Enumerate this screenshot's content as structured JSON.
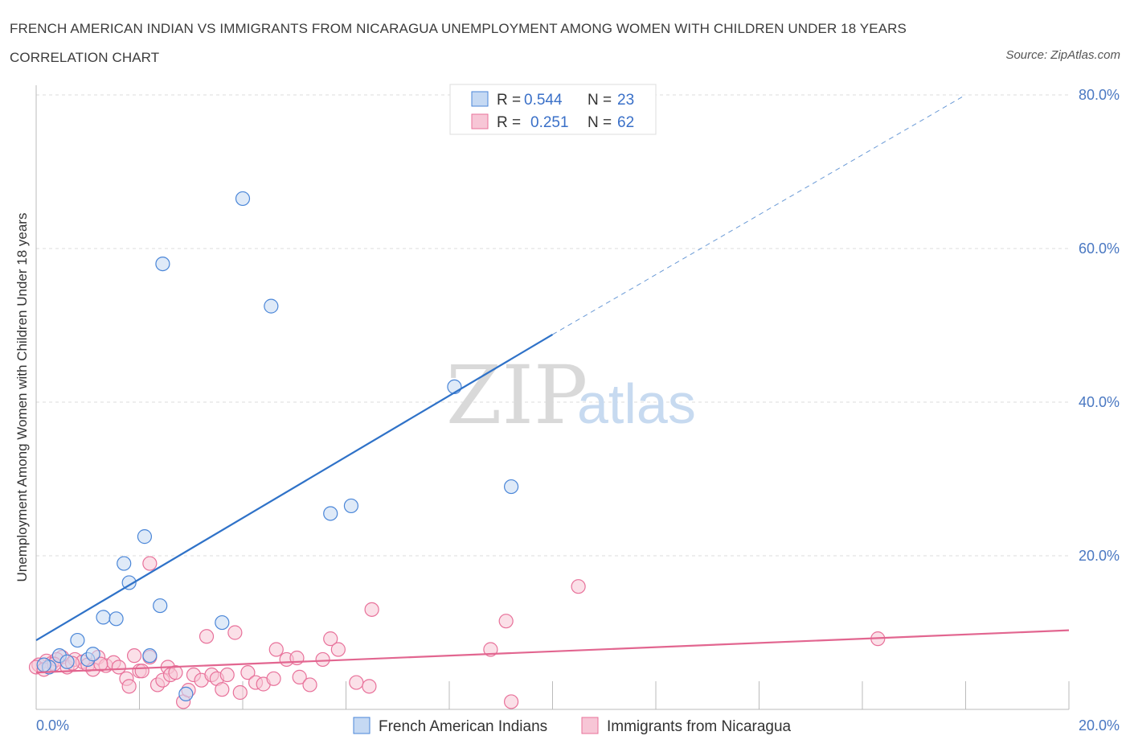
{
  "title": "FRENCH AMERICAN INDIAN VS IMMIGRANTS FROM NICARAGUA UNEMPLOYMENT AMONG WOMEN WITH CHILDREN UNDER 18 YEARS CORRELATION CHART",
  "source": "Source: ZipAtlas.com",
  "watermark": {
    "zip": "ZIP",
    "atlas": "atlas"
  },
  "colors": {
    "blue": "#4a86d8",
    "blue_fill": "#c5d9f3",
    "pink": "#e8719a",
    "pink_fill": "#f7c6d6",
    "tick_text": "#4a78c2",
    "grid": "#dddddd"
  },
  "legend": {
    "rows": [
      {
        "r_label": "R =",
        "r_value": "0.544",
        "n_label": "N =",
        "n_value": "23"
      },
      {
        "r_label": "R =",
        "r_value": "0.251",
        "n_label": "N =",
        "n_value": "62"
      }
    ]
  },
  "chart_data": {
    "type": "scatter",
    "title": "FRENCH AMERICAN INDIAN VS IMMIGRANTS FROM NICARAGUA UNEMPLOYMENT AMONG WOMEN WITH CHILDREN UNDER 18 YEARS CORRELATION CHART",
    "xlabel": "",
    "ylabel": "Unemployment Among Women with Children Under 18 years",
    "xlim": [
      0,
      20
    ],
    "ylim": [
      0,
      80
    ],
    "x_tick_labels": [
      "0.0%",
      "20.0%"
    ],
    "y_tick_labels": [
      "20.0%",
      "40.0%",
      "60.0%",
      "80.0%"
    ],
    "y_ticks": [
      20,
      40,
      60,
      80
    ],
    "grid": true,
    "series": [
      {
        "name": "French American Indians",
        "color": "blue",
        "r": 0.544,
        "n": 23,
        "points": [
          [
            0.25,
            5.5
          ],
          [
            0.45,
            7.0
          ],
          [
            0.8,
            9.0
          ],
          [
            1.0,
            6.5
          ],
          [
            1.1,
            7.2
          ],
          [
            1.3,
            12.0
          ],
          [
            1.55,
            11.8
          ],
          [
            1.7,
            19.0
          ],
          [
            1.8,
            16.5
          ],
          [
            2.1,
            22.5
          ],
          [
            2.2,
            7.0
          ],
          [
            2.4,
            13.5
          ],
          [
            2.45,
            58.0
          ],
          [
            2.9,
            2.0
          ],
          [
            3.6,
            11.3
          ],
          [
            4.0,
            66.5
          ],
          [
            4.55,
            52.5
          ],
          [
            5.7,
            25.5
          ],
          [
            6.1,
            26.5
          ],
          [
            8.1,
            42.0
          ],
          [
            9.2,
            29.0
          ],
          [
            0.15,
            5.8
          ],
          [
            0.6,
            6.2
          ]
        ],
        "trend": {
          "x0": 0,
          "y0": 9.0,
          "x1_solid": 10.0,
          "y1_solid": 48.8,
          "x1_dashed": 18.0,
          "y1_dashed": 80.0
        }
      },
      {
        "name": "Immigrants from Nicaragua",
        "color": "pink",
        "r": 0.251,
        "n": 62,
        "points": [
          [
            0.05,
            5.8
          ],
          [
            0.2,
            6.3
          ],
          [
            0.3,
            6.0
          ],
          [
            0.5,
            6.8
          ],
          [
            0.6,
            5.5
          ],
          [
            0.75,
            6.5
          ],
          [
            0.9,
            6.2
          ],
          [
            1.0,
            5.8
          ],
          [
            1.1,
            5.2
          ],
          [
            1.2,
            6.8
          ],
          [
            1.35,
            5.7
          ],
          [
            1.5,
            6.1
          ],
          [
            1.6,
            5.5
          ],
          [
            1.75,
            4.0
          ],
          [
            1.8,
            3.0
          ],
          [
            1.9,
            7.0
          ],
          [
            2.0,
            5.0
          ],
          [
            2.05,
            5.0
          ],
          [
            2.2,
            19.0
          ],
          [
            2.2,
            6.8
          ],
          [
            2.35,
            3.2
          ],
          [
            2.45,
            3.8
          ],
          [
            2.55,
            5.5
          ],
          [
            2.6,
            4.5
          ],
          [
            2.7,
            4.8
          ],
          [
            2.85,
            1.0
          ],
          [
            2.95,
            2.5
          ],
          [
            3.05,
            4.5
          ],
          [
            3.2,
            3.8
          ],
          [
            3.3,
            9.5
          ],
          [
            3.4,
            4.5
          ],
          [
            3.5,
            4.0
          ],
          [
            3.6,
            2.6
          ],
          [
            3.7,
            4.5
          ],
          [
            3.85,
            10.0
          ],
          [
            3.95,
            2.2
          ],
          [
            4.1,
            4.8
          ],
          [
            4.25,
            3.5
          ],
          [
            4.4,
            3.3
          ],
          [
            4.6,
            4.0
          ],
          [
            4.65,
            7.8
          ],
          [
            4.85,
            6.5
          ],
          [
            5.05,
            6.7
          ],
          [
            5.1,
            4.2
          ],
          [
            5.3,
            3.2
          ],
          [
            5.55,
            6.5
          ],
          [
            5.7,
            9.2
          ],
          [
            5.85,
            7.8
          ],
          [
            6.2,
            3.5
          ],
          [
            6.45,
            3.0
          ],
          [
            6.5,
            13.0
          ],
          [
            8.8,
            7.8
          ],
          [
            9.1,
            11.5
          ],
          [
            9.2,
            1.0
          ],
          [
            10.5,
            16.0
          ],
          [
            16.3,
            9.2
          ],
          [
            0.0,
            5.5
          ],
          [
            0.4,
            6.5
          ],
          [
            0.7,
            6.0
          ],
          [
            1.25,
            5.9
          ],
          [
            0.15,
            5.2
          ],
          [
            0.35,
            5.9
          ]
        ],
        "trend": {
          "x0": 0,
          "y0": 4.8,
          "x1": 20,
          "y1": 10.3
        }
      }
    ]
  },
  "bottom_legend": [
    {
      "label": "French American Indians",
      "color": "blue"
    },
    {
      "label": "Immigrants from Nicaragua",
      "color": "pink"
    }
  ]
}
